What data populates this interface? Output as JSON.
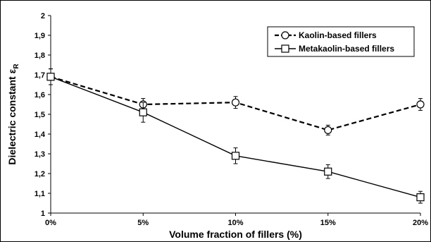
{
  "chart_data": {
    "type": "line",
    "xlabel": "Volume fraction of fillers (%)",
    "ylabel": "Dielectric constant",
    "ylabel_symbol": "ε",
    "ylabel_subscript": "R",
    "categories": [
      "0%",
      "5%",
      "10%",
      "15%",
      "20%"
    ],
    "ylim": [
      1,
      2
    ],
    "yticks": [
      "1",
      "1,1",
      "1,2",
      "1,3",
      "1,4",
      "1,5",
      "1,6",
      "1,7",
      "1,8",
      "1,9",
      "2"
    ],
    "ytick_values": [
      1,
      1.1,
      1.2,
      1.3,
      1.4,
      1.5,
      1.6,
      1.7,
      1.8,
      1.9,
      2
    ],
    "grid": false,
    "legend_position": "top-right",
    "series": [
      {
        "name": "Kaolin-based fillers",
        "values": [
          1.69,
          1.55,
          1.56,
          1.42,
          1.55
        ],
        "errors": [
          0.04,
          0.03,
          0.03,
          0.025,
          0.03
        ],
        "marker": "circle",
        "line_style": "dashed",
        "color": "#000000"
      },
      {
        "name": "Metakaolin-based fillers",
        "values": [
          1.69,
          1.51,
          1.29,
          1.21,
          1.08
        ],
        "errors": [
          0.04,
          0.05,
          0.04,
          0.035,
          0.03
        ],
        "marker": "square",
        "line_style": "solid",
        "color": "#000000"
      }
    ]
  }
}
